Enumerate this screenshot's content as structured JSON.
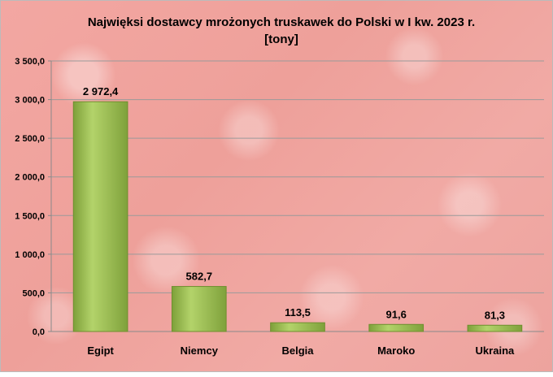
{
  "chart_data": {
    "type": "bar",
    "title": "Najwięksi dostawcy mrożonych truskawek do Polski w I kw. 2023 r.",
    "subtitle": "[tony]",
    "categories": [
      "Egipt",
      "Niemcy",
      "Belgia",
      "Maroko",
      "Ukraina"
    ],
    "values": [
      2972.4,
      582.7,
      113.5,
      91.6,
      81.3
    ],
    "value_labels": [
      "2 972,4",
      "582,7",
      "113,5",
      "91,6",
      "81,3"
    ],
    "ylim": [
      0,
      3500
    ],
    "yticks": [
      "0,0",
      "500,0",
      "1 000,0",
      "1 500,0",
      "2 000,0",
      "2 500,0",
      "3 000,0",
      "3 500,0"
    ],
    "xlabel": "",
    "ylabel": "",
    "grid": true,
    "bar_color": "#9bbb59",
    "bar_color_dark": "#6f8f2f"
  }
}
